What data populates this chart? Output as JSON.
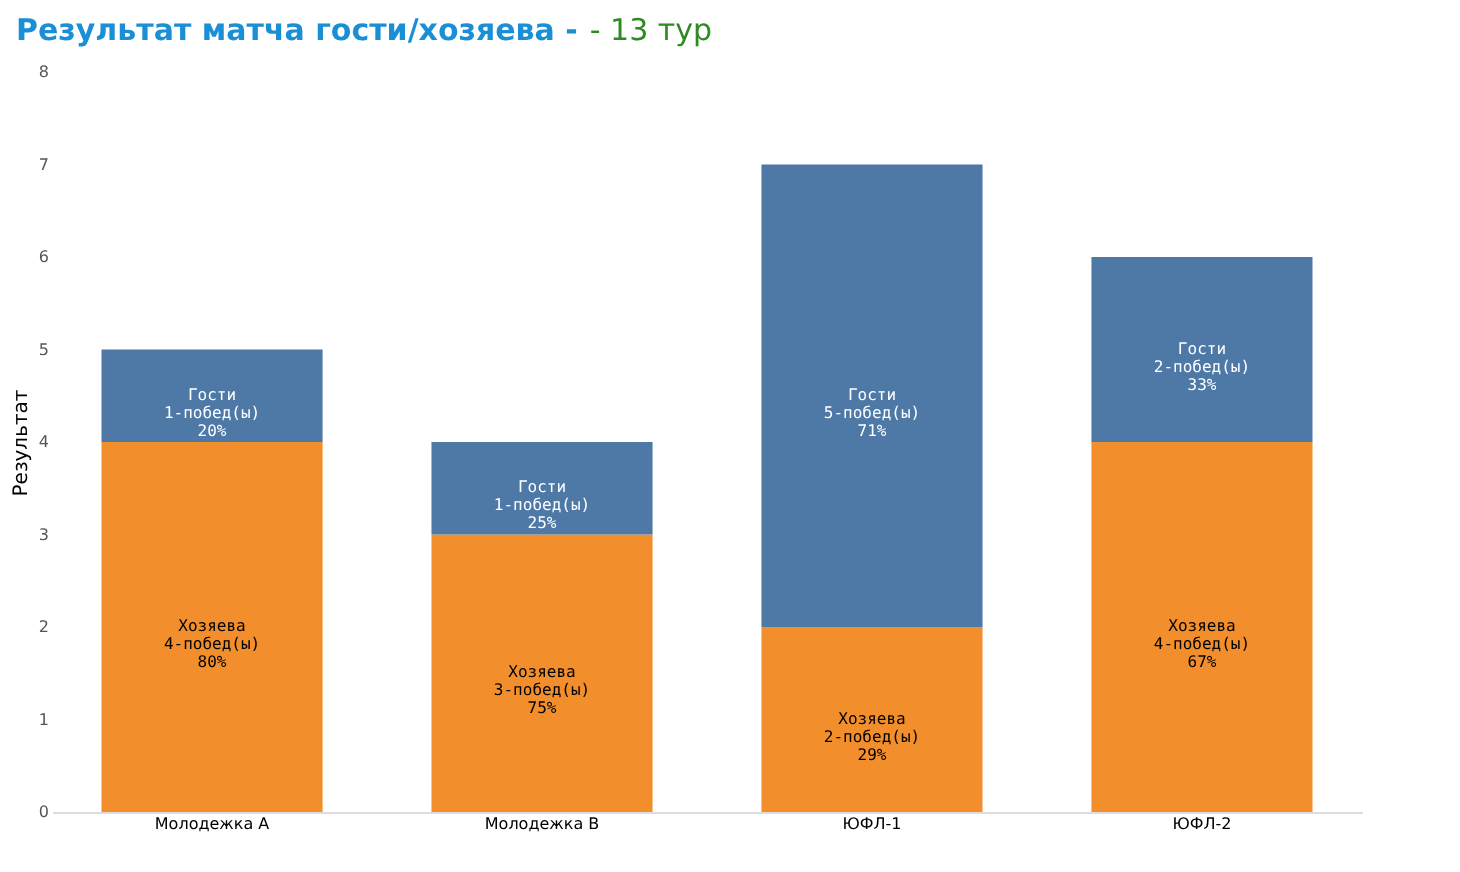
{
  "chart_data": {
    "type": "bar",
    "title": "Результат матча гости/хозяева -",
    "subtitle": "- 13 тур",
    "ylabel": "Результат",
    "stacked": true,
    "categories": [
      "Молодежка А",
      "Молодежка В",
      "ЮФЛ-1",
      "ЮФЛ-2"
    ],
    "series": [
      {
        "name": "Хозяева",
        "color": "#f28e2b",
        "values": [
          4,
          3,
          2,
          4
        ],
        "value_labels": [
          "4-побед(ы)\n80%",
          "3-побед(ы)\n75%",
          "2-побед(ы)\n29%",
          "4-побед(ы)\n67%"
        ]
      },
      {
        "name": "Гости",
        "color": "#4e79a7",
        "values": [
          1,
          1,
          5,
          2
        ],
        "value_labels": [
          "1-побед(ы)\n20%",
          "1-побед(ы)\n25%",
          "5-побед(ы)\n71%",
          "2-побед(ы)\n33%"
        ]
      }
    ],
    "ylim": [
      0,
      8
    ],
    "yticks": [
      0,
      1,
      2,
      3,
      4,
      5,
      6,
      7,
      8
    ],
    "grid": false
  }
}
